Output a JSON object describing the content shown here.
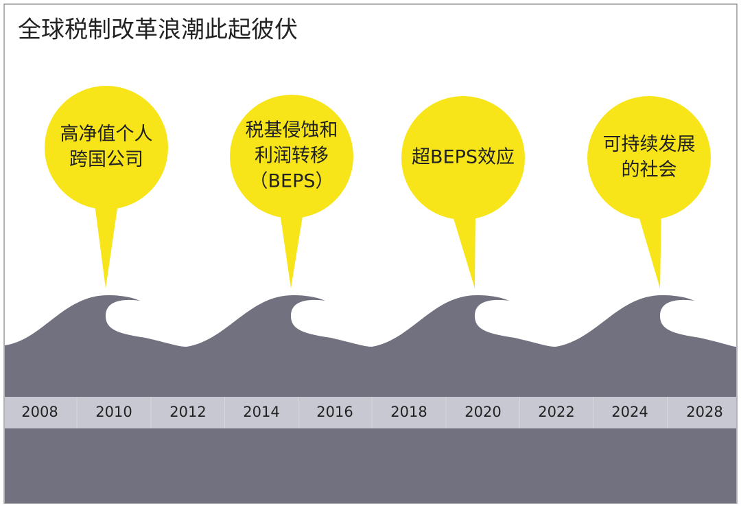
{
  "title": "全球税制改革浪潮此起彼伏",
  "bubbles": [
    {
      "lines": [
        "高净值个人",
        "跨国公司"
      ]
    },
    {
      "lines": [
        "税基侵蚀和",
        "利润转移",
        "（BEPS）"
      ]
    },
    {
      "lines": [
        "超BEPS效应"
      ]
    },
    {
      "lines": [
        "可持续发展",
        "的社会"
      ]
    }
  ],
  "timeline": {
    "years": [
      "2008",
      "2010",
      "2012",
      "2014",
      "2016",
      "2018",
      "2020",
      "2022",
      "2024",
      "2028"
    ]
  }
}
